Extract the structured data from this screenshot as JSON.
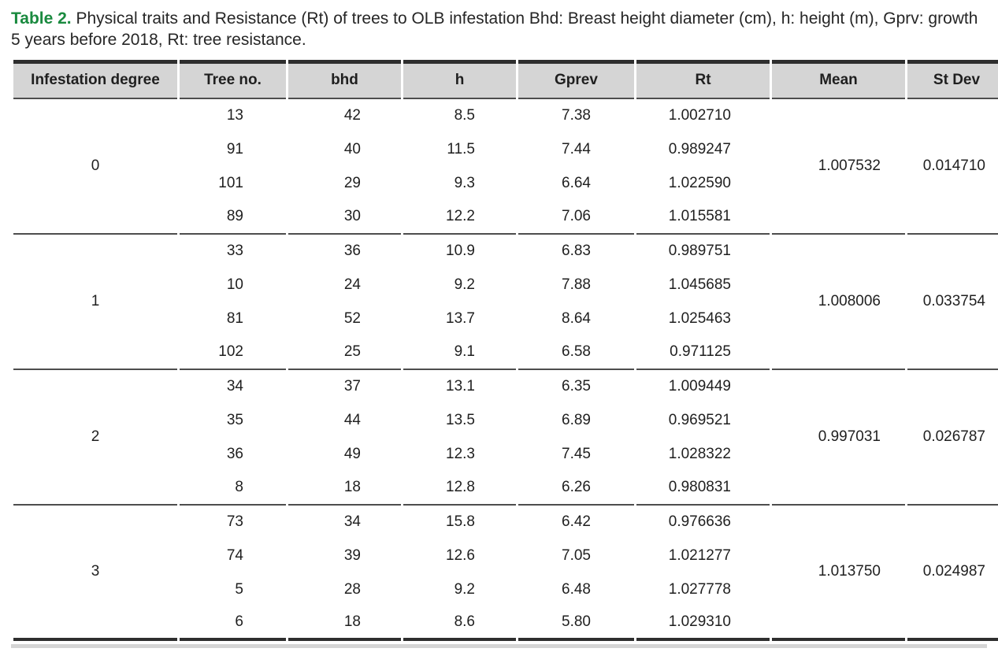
{
  "caption": {
    "label": "Table 2.",
    "text": " Physical traits and Resistance (Rt) of trees to OLB infestation Bhd: Breast height diameter (cm), h: height (m), Gprv: growth 5 years before 2018, Rt: tree resistance."
  },
  "table": {
    "columns": [
      "Infestation degree",
      "Tree no.",
      "bhd",
      "h",
      "Gprev",
      "Rt",
      "Mean",
      "St Dev"
    ],
    "groups": [
      {
        "degree": "0",
        "mean": "1.007532",
        "st_dev": "0.014710",
        "rows": [
          {
            "tree_no": "13",
            "bhd": "42",
            "h": "8.5",
            "gprev": "7.38",
            "rt": "1.002710"
          },
          {
            "tree_no": "91",
            "bhd": "40",
            "h": "11.5",
            "gprev": "7.44",
            "rt": "0.989247"
          },
          {
            "tree_no": "101",
            "bhd": "29",
            "h": "9.3",
            "gprev": "6.64",
            "rt": "1.022590"
          },
          {
            "tree_no": "89",
            "bhd": "30",
            "h": "12.2",
            "gprev": "7.06",
            "rt": "1.015581"
          }
        ]
      },
      {
        "degree": "1",
        "mean": "1.008006",
        "st_dev": "0.033754",
        "rows": [
          {
            "tree_no": "33",
            "bhd": "36",
            "h": "10.9",
            "gprev": "6.83",
            "rt": "0.989751"
          },
          {
            "tree_no": "10",
            "bhd": "24",
            "h": "9.2",
            "gprev": "7.88",
            "rt": "1.045685"
          },
          {
            "tree_no": "81",
            "bhd": "52",
            "h": "13.7",
            "gprev": "8.64",
            "rt": "1.025463"
          },
          {
            "tree_no": "102",
            "bhd": "25",
            "h": "9.1",
            "gprev": "6.58",
            "rt": "0.971125"
          }
        ]
      },
      {
        "degree": "2",
        "mean": "0.997031",
        "st_dev": "0.026787",
        "rows": [
          {
            "tree_no": "34",
            "bhd": "37",
            "h": "13.1",
            "gprev": "6.35",
            "rt": "1.009449"
          },
          {
            "tree_no": "35",
            "bhd": "44",
            "h": "13.5",
            "gprev": "6.89",
            "rt": "0.969521"
          },
          {
            "tree_no": "36",
            "bhd": "49",
            "h": "12.3",
            "gprev": "7.45",
            "rt": "1.028322"
          },
          {
            "tree_no": "8",
            "bhd": "18",
            "h": "12.8",
            "gprev": "6.26",
            "rt": "0.980831"
          }
        ]
      },
      {
        "degree": "3",
        "mean": "1.013750",
        "st_dev": "0.024987",
        "rows": [
          {
            "tree_no": "73",
            "bhd": "34",
            "h": "15.8",
            "gprev": "6.42",
            "rt": "0.976636"
          },
          {
            "tree_no": "74",
            "bhd": "39",
            "h": "12.6",
            "gprev": "7.05",
            "rt": "1.021277"
          },
          {
            "tree_no": "5",
            "bhd": "28",
            "h": "9.2",
            "gprev": "6.48",
            "rt": "1.027778"
          },
          {
            "tree_no": "6",
            "bhd": "18",
            "h": "8.6",
            "gprev": "5.80",
            "rt": "1.029310"
          }
        ]
      }
    ]
  },
  "colors": {
    "caption_label_green": "#1a8a3f",
    "header_background": "#d5d5d5",
    "heavy_rule": "#2e2e2e",
    "light_rule": "#4d4d4d",
    "text": "#1f1f1f"
  }
}
